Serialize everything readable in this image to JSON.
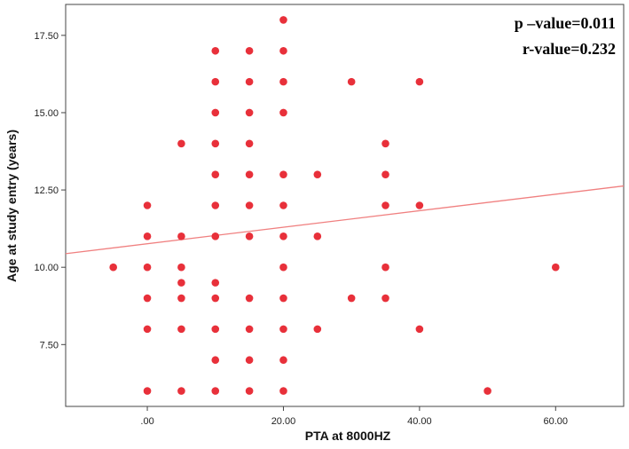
{
  "chart_data": {
    "type": "scatter",
    "xlabel": "PTA at 8000HZ",
    "ylabel": "Age at study entry (years)",
    "xlim": [
      -12,
      70
    ],
    "ylim": [
      5.5,
      18.5
    ],
    "x_ticks": [
      0,
      20,
      40,
      60
    ],
    "x_tick_labels": [
      ".00",
      "20.00",
      "40.00",
      "60.00"
    ],
    "y_ticks": [
      7.5,
      10.0,
      12.5,
      15.0,
      17.5
    ],
    "y_tick_labels": [
      "7.50",
      "10.00",
      "12.50",
      "15.00",
      "17.50"
    ],
    "grid": false,
    "point_color": "#e8303a",
    "line_color": "#f08080",
    "annotations": [
      "p –value=0.011",
      "r-value=0.232"
    ],
    "fit_line": {
      "x": [
        -12,
        70
      ],
      "y": [
        10.44,
        12.63
      ]
    },
    "points": [
      {
        "x": -5,
        "y": 10
      },
      {
        "x": 0,
        "y": 12
      },
      {
        "x": 0,
        "y": 11
      },
      {
        "x": 0,
        "y": 10
      },
      {
        "x": 0,
        "y": 9
      },
      {
        "x": 0,
        "y": 8
      },
      {
        "x": 0,
        "y": 6
      },
      {
        "x": 5,
        "y": 14
      },
      {
        "x": 5,
        "y": 11
      },
      {
        "x": 5,
        "y": 10
      },
      {
        "x": 5,
        "y": 9.5
      },
      {
        "x": 5,
        "y": 9
      },
      {
        "x": 5,
        "y": 8
      },
      {
        "x": 5,
        "y": 6
      },
      {
        "x": 10,
        "y": 17
      },
      {
        "x": 10,
        "y": 16
      },
      {
        "x": 10,
        "y": 15
      },
      {
        "x": 10,
        "y": 14
      },
      {
        "x": 10,
        "y": 13
      },
      {
        "x": 10,
        "y": 12
      },
      {
        "x": 10,
        "y": 11
      },
      {
        "x": 10,
        "y": 9.5
      },
      {
        "x": 10,
        "y": 9
      },
      {
        "x": 10,
        "y": 8
      },
      {
        "x": 10,
        "y": 7
      },
      {
        "x": 10,
        "y": 6
      },
      {
        "x": 15,
        "y": 17
      },
      {
        "x": 15,
        "y": 16
      },
      {
        "x": 15,
        "y": 15
      },
      {
        "x": 15,
        "y": 14
      },
      {
        "x": 15,
        "y": 13
      },
      {
        "x": 15,
        "y": 12
      },
      {
        "x": 15,
        "y": 11
      },
      {
        "x": 15,
        "y": 9
      },
      {
        "x": 15,
        "y": 8
      },
      {
        "x": 15,
        "y": 7
      },
      {
        "x": 15,
        "y": 6
      },
      {
        "x": 20,
        "y": 18
      },
      {
        "x": 20,
        "y": 17
      },
      {
        "x": 20,
        "y": 16
      },
      {
        "x": 20,
        "y": 15
      },
      {
        "x": 20,
        "y": 13
      },
      {
        "x": 20,
        "y": 12
      },
      {
        "x": 20,
        "y": 11
      },
      {
        "x": 20,
        "y": 10
      },
      {
        "x": 20,
        "y": 9
      },
      {
        "x": 20,
        "y": 8
      },
      {
        "x": 20,
        "y": 7
      },
      {
        "x": 20,
        "y": 6
      },
      {
        "x": 25,
        "y": 13
      },
      {
        "x": 25,
        "y": 11
      },
      {
        "x": 25,
        "y": 8
      },
      {
        "x": 30,
        "y": 16
      },
      {
        "x": 30,
        "y": 9
      },
      {
        "x": 35,
        "y": 14
      },
      {
        "x": 35,
        "y": 13
      },
      {
        "x": 35,
        "y": 12
      },
      {
        "x": 35,
        "y": 10
      },
      {
        "x": 35,
        "y": 9
      },
      {
        "x": 40,
        "y": 16
      },
      {
        "x": 40,
        "y": 12
      },
      {
        "x": 40,
        "y": 8
      },
      {
        "x": 50,
        "y": 6
      },
      {
        "x": 60,
        "y": 10
      }
    ]
  }
}
